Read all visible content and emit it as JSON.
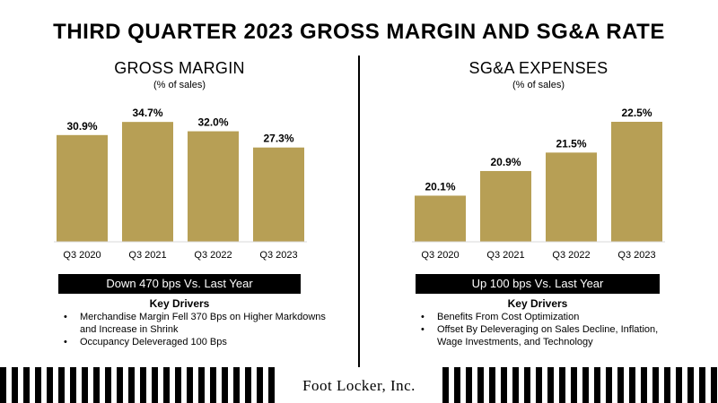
{
  "title": "THIRD QUARTER 2023 GROSS MARGIN AND SG&A RATE",
  "colors": {
    "bar": "#B79F55",
    "text": "#000000",
    "banner_bg": "#000000",
    "banner_text": "#ffffff"
  },
  "left": {
    "title": "GROSS MARGIN",
    "subtitle": "(% of sales)",
    "banner": "Down 470 bps Vs. Last Year",
    "drivers_title": "Key Drivers",
    "drivers": [
      "Merchandise Margin Fell 370 Bps on Higher Markdowns and Increase in Shrink",
      "Occupancy Deleveraged 100 Bps"
    ]
  },
  "right": {
    "title": "SG&A EXPENSES",
    "subtitle": "(% of sales)",
    "banner": "Up 100 bps Vs. Last Year",
    "drivers_title": "Key Drivers",
    "drivers": [
      "Benefits From Cost Optimization",
      "Offset By Deleveraging on Sales Decline, Inflation, Wage Investments, and Technology"
    ]
  },
  "footer": {
    "logo_text": "Foot Locker, Inc."
  },
  "chart_data": [
    {
      "type": "bar",
      "title": "GROSS MARGIN",
      "subtitle": "(% of sales)",
      "categories": [
        "Q3 2020",
        "Q3 2021",
        "Q3 2022",
        "Q3 2023"
      ],
      "values": [
        30.9,
        34.7,
        32.0,
        27.3
      ],
      "labels": [
        "30.9%",
        "34.7%",
        "32.0%",
        "27.3%"
      ],
      "ylim": [
        0,
        35
      ],
      "grid": false
    },
    {
      "type": "bar",
      "title": "SG&A EXPENSES",
      "subtitle": "(% of sales)",
      "categories": [
        "Q3 2020",
        "Q3 2021",
        "Q3 2022",
        "Q3 2023"
      ],
      "values": [
        20.1,
        20.9,
        21.5,
        22.5
      ],
      "labels": [
        "20.1%",
        "20.9%",
        "21.5%",
        "22.5%"
      ],
      "ylim": [
        18.6,
        22.5
      ],
      "grid": false
    }
  ]
}
